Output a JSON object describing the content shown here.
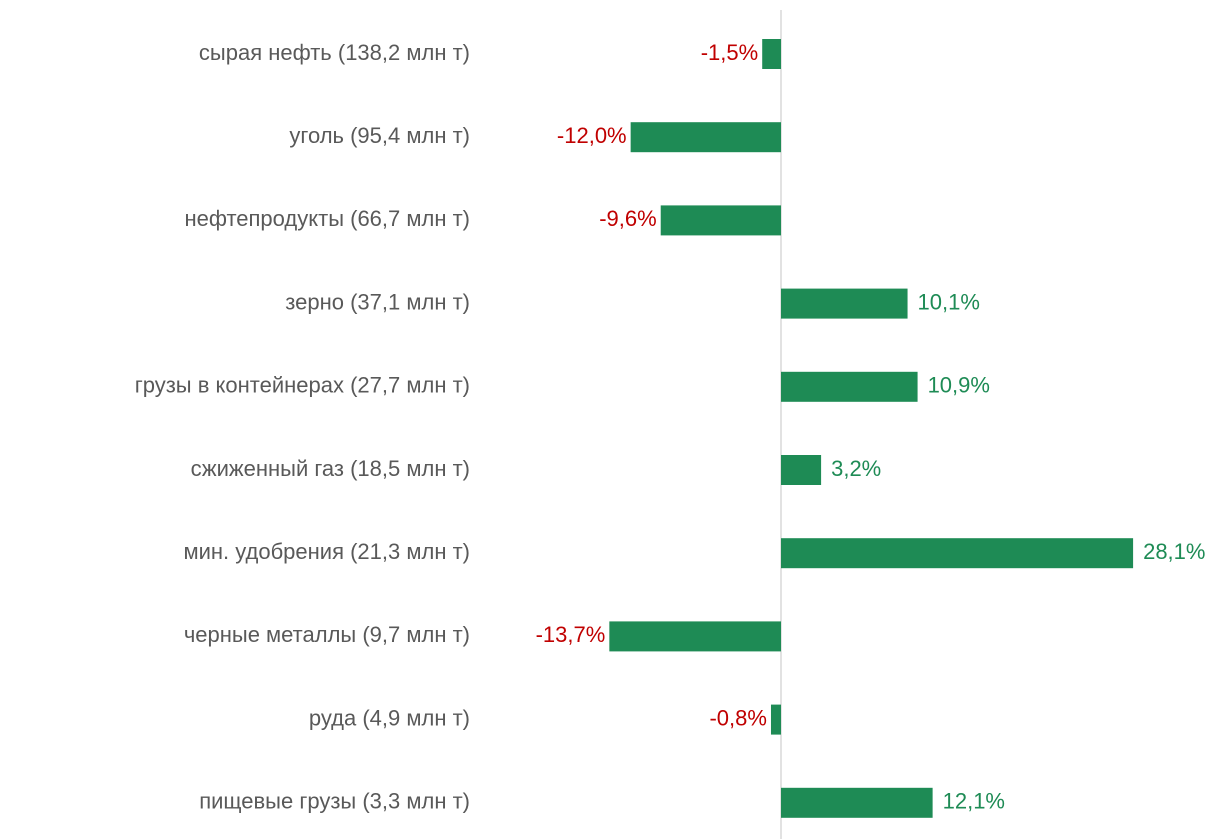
{
  "chart_data": {
    "type": "barh",
    "categories": [
      "сырая нефть (138,2 млн т)",
      "уголь (95,4 млн т)",
      "нефтепродукты (66,7 млн т)",
      "зерно (37,1 млн т)",
      "грузы в контейнерах (27,7 млн т)",
      "сжиженный газ (18,5 млн т)",
      "мин. удобрения (21,3 млн т)",
      "черные металлы (9,7 млн т)",
      "руда (4,9 млн т)",
      "пищевые грузы (3,3 млн т)"
    ],
    "values": [
      -1.5,
      -12.0,
      -9.6,
      10.1,
      10.9,
      3.2,
      28.1,
      -13.7,
      -0.8,
      12.1
    ],
    "value_labels": [
      "-1,5%",
      "-12,0%",
      "-9,6%",
      "10,1%",
      "10,9%",
      "3,2%",
      "28,1%",
      "-13,7%",
      "-0,8%",
      "12,1%"
    ],
    "color": "#1e8b55",
    "label_colors": {
      "negative": "#c00000",
      "positive": "#1e8b55"
    }
  }
}
